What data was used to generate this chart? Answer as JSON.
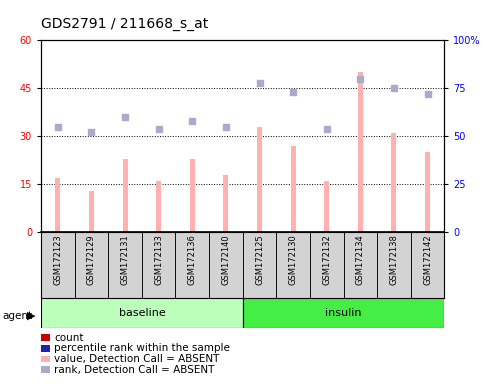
{
  "title": "GDS2791 / 211668_s_at",
  "samples": [
    "GSM172123",
    "GSM172129",
    "GSM172131",
    "GSM172133",
    "GSM172136",
    "GSM172140",
    "GSM172125",
    "GSM172130",
    "GSM172132",
    "GSM172134",
    "GSM172138",
    "GSM172142"
  ],
  "bar_values": [
    17,
    13,
    23,
    16,
    23,
    18,
    33,
    27,
    16,
    50,
    31,
    25
  ],
  "rank_values": [
    55,
    52,
    60,
    54,
    58,
    55,
    78,
    73,
    54,
    80,
    75,
    72
  ],
  "ylim_left": [
    0,
    60
  ],
  "ylim_right": [
    0,
    100
  ],
  "yticks_left": [
    0,
    15,
    30,
    45,
    60
  ],
  "yticks_right": [
    0,
    25,
    50,
    75,
    100
  ],
  "ytick_labels_right": [
    "0",
    "25",
    "50",
    "75",
    "100%"
  ],
  "grid_lines": [
    15,
    30,
    45
  ],
  "bar_color": "#ffb0b0",
  "rank_color": "#aaaacc",
  "bar_width": 0.15,
  "title_fontsize": 10,
  "tick_fontsize": 7,
  "legend_fontsize": 7.5,
  "sample_box_color": "#d3d3d3",
  "baseline_color": "#bbffbb",
  "insulin_color": "#44ee44",
  "legend_items": [
    {
      "color": "#cc0000",
      "label": "count"
    },
    {
      "color": "#2222aa",
      "label": "percentile rank within the sample"
    },
    {
      "color": "#ffb0b0",
      "label": "value, Detection Call = ABSENT"
    },
    {
      "color": "#aaaacc",
      "label": "rank, Detection Call = ABSENT"
    }
  ]
}
